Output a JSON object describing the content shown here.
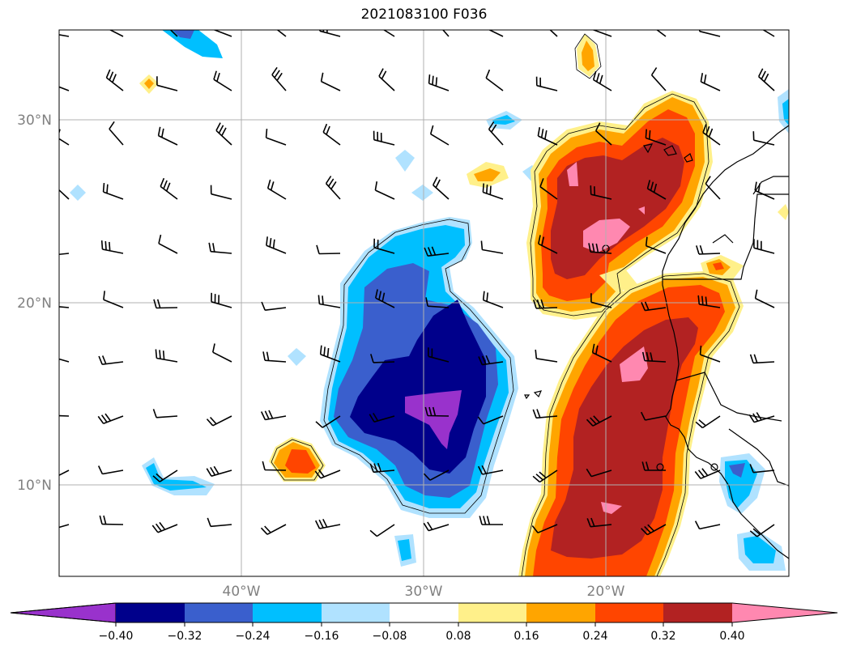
{
  "title": "2021083100 F036",
  "axes": {
    "lat_labels": [
      "30°N",
      "20°N",
      "10°N"
    ],
    "lon_labels": [
      "40°W",
      "30°W",
      "20°W"
    ]
  },
  "colorbar": {
    "tick_labels": [
      "−0.40",
      "−0.32",
      "−0.24",
      "−0.16",
      "−0.08",
      "0.08",
      "0.16",
      "0.24",
      "0.32",
      "0.40"
    ],
    "colors": [
      "#9932cc",
      "#00008b",
      "#3a5fcd",
      "#00bfff",
      "#b0e2ff",
      "#ffffff",
      "#fff08a",
      "#ffa500",
      "#ff4500",
      "#b22222",
      "#ff88b0"
    ]
  },
  "colors": {
    "grid": "#b0b0b0",
    "frame": "#000000",
    "coast": "#000000",
    "barb": "#000000"
  }
}
